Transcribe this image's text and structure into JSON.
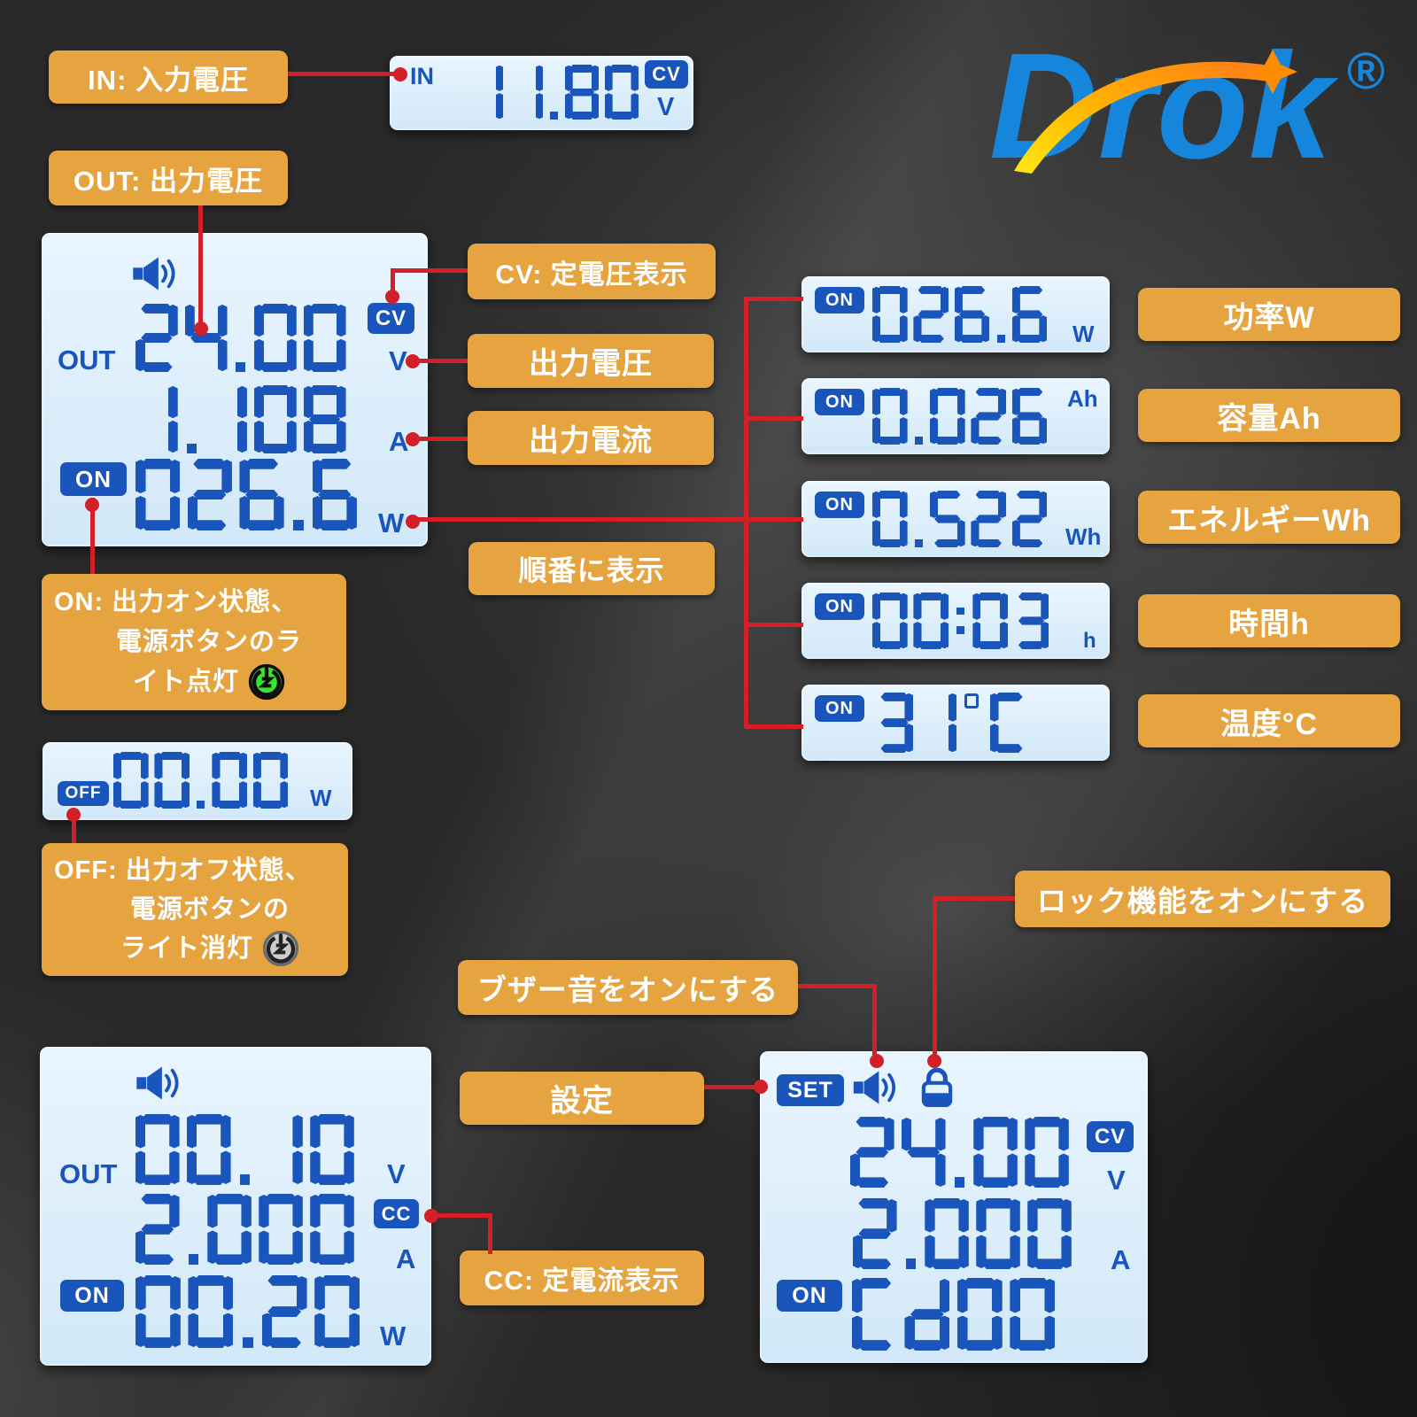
{
  "brand": {
    "name": "Drok",
    "registered": "®"
  },
  "annotations": {
    "in": "IN: 入力電圧",
    "out": "OUT: 出力電圧",
    "cv": "CV: 定電圧表示",
    "output_voltage": "出力電圧",
    "output_current": "出力電流",
    "sequence": "順番に表示",
    "power": "功率W",
    "capacity": "容量Ah",
    "energy": "エネルギーWh",
    "time": "時間h",
    "temperature": "温度°C",
    "on_state_lines": [
      "ON: 出力オン状態、",
      "電源ボタンのラ",
      "イト点灯"
    ],
    "off_state_lines": [
      "OFF: 出力オフ状態、",
      "電源ボタンの",
      "ライト消灯"
    ],
    "buzzer": "ブザー音をオンにする",
    "settings": "設定",
    "cc": "CC: 定電流表示",
    "lock": "ロック機能をオンにする"
  },
  "displays": {
    "input": {
      "prefix": "IN",
      "value": "11.80",
      "badge": "CV",
      "unit": "V"
    },
    "main_on": {
      "prefix": "OUT",
      "voltage": "24.00",
      "voltage_badge": "CV",
      "voltage_unit": "V",
      "current": "1.108",
      "current_unit": "A",
      "state_badge": "ON",
      "power": "026.6",
      "power_unit": "W"
    },
    "metrics": [
      {
        "badge": "ON",
        "value": "026.6",
        "unit": "W"
      },
      {
        "badge": "ON",
        "value": "0.026",
        "unit": "Ah"
      },
      {
        "badge": "ON",
        "value": "0.522",
        "unit": "Wh"
      },
      {
        "badge": "ON",
        "value": "00:03",
        "unit": "h"
      },
      {
        "badge": "ON",
        "value": "31°C",
        "unit": ""
      }
    ],
    "off": {
      "badge": "OFF",
      "value": "00.00",
      "unit": "W"
    },
    "main_cc": {
      "prefix": "OUT",
      "voltage": "00.10",
      "voltage_unit": "V",
      "current": "2.000",
      "current_badge": "CC",
      "current_unit": "A",
      "state_badge": "ON",
      "power": "00.20",
      "power_unit": "W"
    },
    "set": {
      "set_badge": "SET",
      "voltage": "24.00",
      "voltage_badge": "CV",
      "voltage_unit": "V",
      "current": "2.000",
      "current_unit": "A",
      "state_badge": "ON",
      "mode": "Cd00"
    }
  },
  "icons": {
    "speaker": "speaker-icon",
    "lock": "lock-icon",
    "power_light_on": "power-light-on-icon",
    "power_light_off": "power-light-off-icon"
  },
  "colors": {
    "accent_orange": "#e5a43f",
    "lcd_bg": "#d6ebfa",
    "lcd_ink": "#1a55bb",
    "connector_red": "#d21f28",
    "logo_blue": "#1686dd"
  }
}
